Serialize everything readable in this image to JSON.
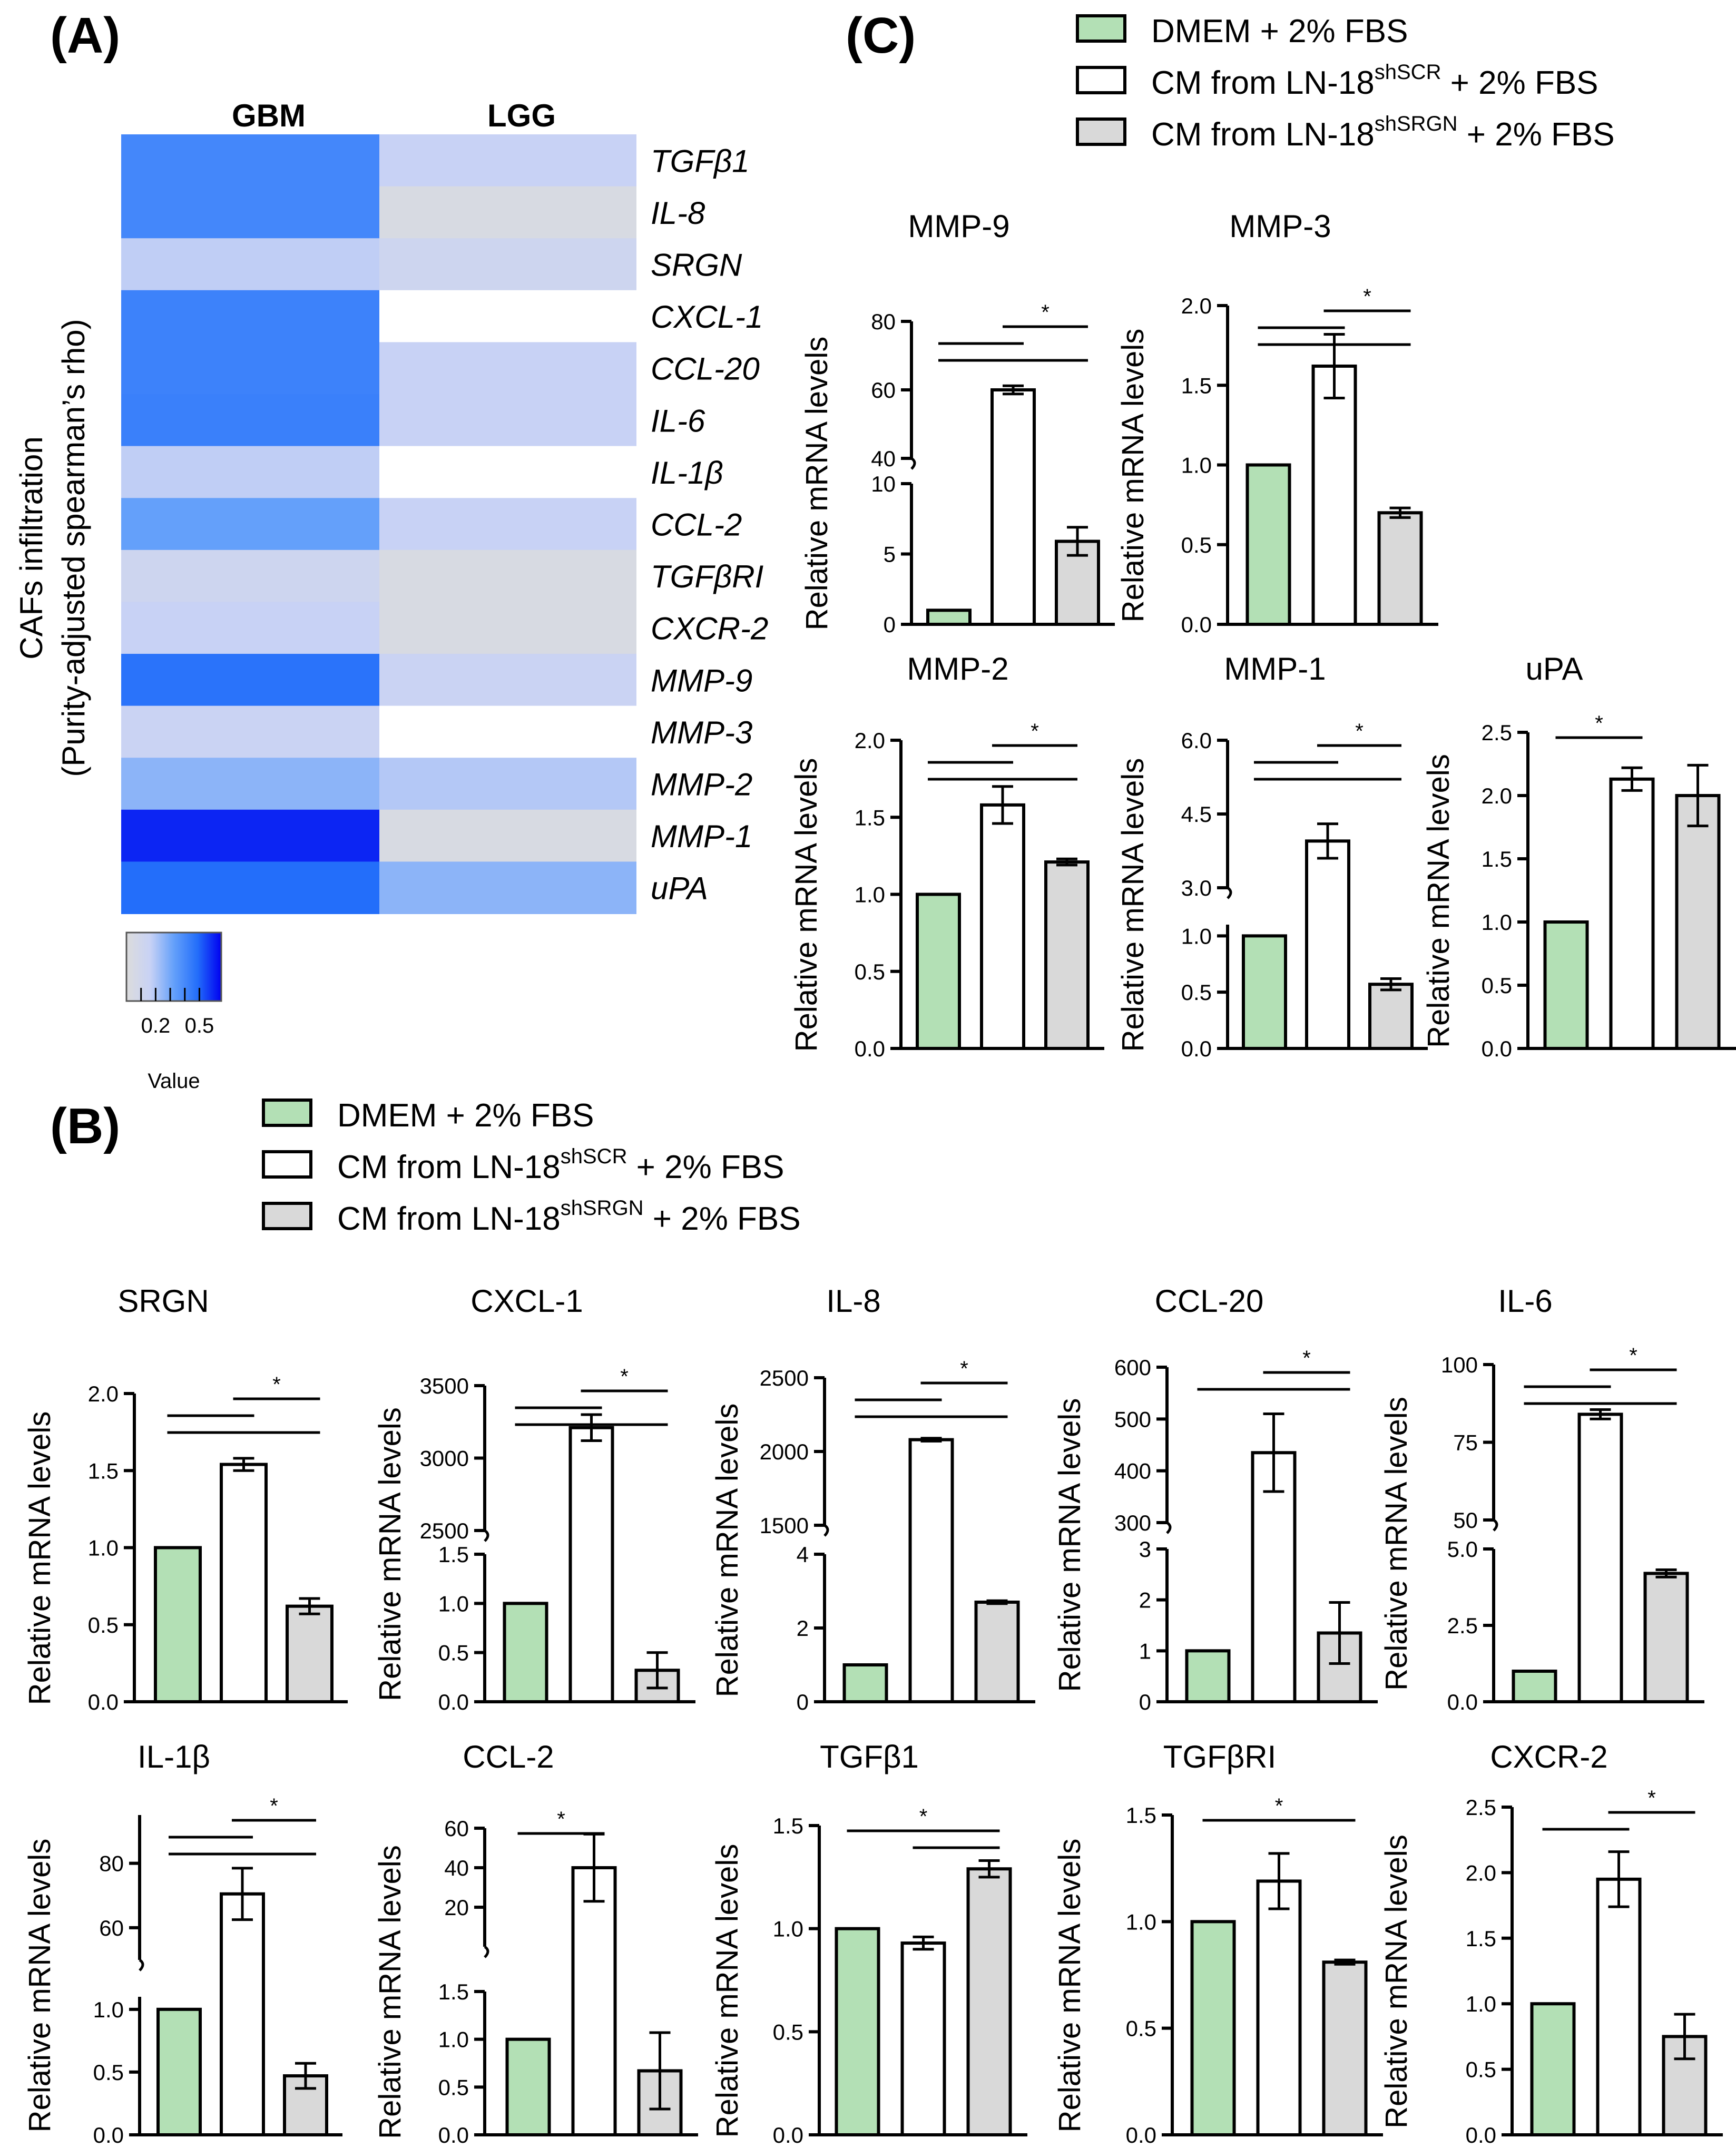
{
  "panels": {
    "A": "(A)",
    "B": "(B)",
    "C": "(C)"
  },
  "colors": {
    "dmem": "#b3e0b5",
    "shscr": "#ffffff",
    "shsrgn": "#d9d9d9",
    "stroke": "#000000"
  },
  "heatmap": {
    "columns": [
      "GBM",
      "LGG"
    ],
    "ylabel_line1": "CAFs infiltration",
    "ylabel_line2": "(Purity-adjusted spearman’s rho)",
    "rows": [
      {
        "gene": "TGFβ1",
        "gbm": 0.55,
        "lgg": 0.2
      },
      {
        "gene": "IL-8",
        "gbm": 0.55,
        "lgg": 0.05
      },
      {
        "gene": "SRGN",
        "gbm": 0.22,
        "lgg": 0.15
      },
      {
        "gene": "CXCL-1",
        "gbm": 0.57,
        "lgg": null
      },
      {
        "gene": "CCL-20",
        "gbm": 0.57,
        "lgg": 0.2
      },
      {
        "gene": "IL-6",
        "gbm": 0.58,
        "lgg": 0.2
      },
      {
        "gene": "IL-1β",
        "gbm": 0.22,
        "lgg": null
      },
      {
        "gene": "CCL-2",
        "gbm": 0.45,
        "lgg": 0.2
      },
      {
        "gene": "TGFβRI",
        "gbm": 0.15,
        "lgg": 0.05
      },
      {
        "gene": "CXCR-2",
        "gbm": 0.2,
        "lgg": 0.05
      },
      {
        "gene": "MMP-9",
        "gbm": 0.63,
        "lgg": 0.18
      },
      {
        "gene": "MMP-3",
        "gbm": 0.18,
        "lgg": null
      },
      {
        "gene": "MMP-2",
        "gbm": 0.35,
        "lgg": 0.25
      },
      {
        "gene": "MMP-1",
        "gbm": 0.75,
        "lgg": 0.05
      },
      {
        "gene": "uPA",
        "gbm": 0.65,
        "lgg": 0.35
      }
    ],
    "legend": {
      "title": "Value",
      "ticks": [
        "0.2",
        "0.5"
      ],
      "tick_values": [
        0.2,
        0.5
      ],
      "range": [
        0.0,
        0.65
      ]
    }
  },
  "legend": {
    "dmem": "DMEM + 2% FBS",
    "shscr_pre": "CM from LN-18",
    "shscr_sup": "shSCR",
    "shscr_post": " + 2% FBS",
    "shsrgn_pre": "CM from LN-18",
    "shsrgn_sup": "shSRGN",
    "shsrgn_post": " + 2% FBS"
  },
  "ylabel": "Relative mRNA levels",
  "chart_data": [
    {
      "id": "mmp9",
      "type": "bar",
      "title": "MMP-9",
      "categories": [
        "DMEM + 2% FBS",
        "CM from LN-18 shSCR + 2% FBS",
        "CM from LN-18 shSRGN + 2% FBS"
      ],
      "values": [
        1.0,
        60.0,
        5.9
      ],
      "errors": [
        0,
        1.2,
        1.0
      ],
      "upper": {
        "range": [
          40,
          80
        ],
        "ticks": [
          40,
          60,
          80
        ]
      },
      "lower": {
        "range": [
          0,
          10
        ],
        "ticks": [
          0,
          5,
          10
        ]
      },
      "significance": [
        [
          1,
          2
        ],
        [
          0,
          1
        ],
        [
          0,
          2
        ]
      ],
      "star": "*"
    },
    {
      "id": "mmp3",
      "type": "bar",
      "title": "MMP-3",
      "categories": [
        "DMEM + 2% FBS",
        "CM from LN-18 shSCR + 2% FBS",
        "CM from LN-18 shSRGN + 2% FBS"
      ],
      "values": [
        1.0,
        1.62,
        0.7
      ],
      "errors": [
        0,
        0.2,
        0.03
      ],
      "range": [
        0,
        2.0
      ],
      "ticks": [
        0.0,
        0.5,
        1.0,
        1.5,
        2.0
      ],
      "ticklabels": [
        "0.0",
        "0.5",
        "1.0",
        "1.5",
        "2.0"
      ],
      "significance": [
        [
          1,
          2
        ],
        [
          0,
          1
        ],
        [
          0,
          2
        ]
      ],
      "star": "*"
    },
    {
      "id": "mmp2",
      "type": "bar",
      "title": "MMP-2",
      "categories": [
        "DMEM + 2% FBS",
        "CM from LN-18 shSCR + 2% FBS",
        "CM from LN-18 shSRGN + 2% FBS"
      ],
      "values": [
        1.0,
        1.58,
        1.21
      ],
      "errors": [
        0,
        0.12,
        0.02
      ],
      "range": [
        0,
        2.0
      ],
      "ticks": [
        0.0,
        0.5,
        1.0,
        1.5,
        2.0
      ],
      "ticklabels": [
        "0.0",
        "0.5",
        "1.0",
        "1.5",
        "2.0"
      ],
      "significance": [
        [
          1,
          2
        ],
        [
          0,
          1
        ],
        [
          0,
          2
        ]
      ],
      "star": "*"
    },
    {
      "id": "mmp1",
      "type": "bar",
      "title": "MMP-1",
      "categories": [
        "DMEM + 2% FBS",
        "CM from LN-18 shSCR + 2% FBS",
        "CM from LN-18 shSRGN + 2% FBS"
      ],
      "values": [
        1.0,
        3.95,
        0.57
      ],
      "errors": [
        0,
        0.35,
        0.05
      ],
      "upper": {
        "range": [
          3.0,
          6.0
        ],
        "ticks": [
          3.0,
          4.5,
          6.0
        ],
        "ticklabels": [
          "3.0",
          "4.5",
          "6.0"
        ]
      },
      "lower": {
        "range": [
          0,
          1.1
        ],
        "ticks": [
          0.0,
          0.5,
          1.0
        ],
        "ticklabels": [
          "0.0",
          "0.5",
          "1.0"
        ]
      },
      "significance": [
        [
          1,
          2
        ],
        [
          0,
          1
        ],
        [
          0,
          2
        ]
      ],
      "star": "*"
    },
    {
      "id": "upa",
      "type": "bar",
      "title": "uPA",
      "categories": [
        "DMEM + 2% FBS",
        "CM from LN-18 shSCR + 2% FBS",
        "CM from LN-18 shSRGN + 2% FBS"
      ],
      "values": [
        1.0,
        2.13,
        2.0
      ],
      "errors": [
        0,
        0.09,
        0.24
      ],
      "range": [
        0,
        2.5
      ],
      "ticks": [
        0.0,
        0.5,
        1.0,
        1.5,
        2.0,
        2.5
      ],
      "ticklabels": [
        "0.0",
        "0.5",
        "1.0",
        "1.5",
        "2.0",
        "2.5"
      ],
      "significance": [
        [
          0,
          1
        ]
      ],
      "star": "*"
    },
    {
      "id": "srgn",
      "type": "bar",
      "title": "SRGN",
      "categories": [
        "DMEM + 2% FBS",
        "CM from LN-18 shSCR + 2% FBS",
        "CM from LN-18 shSRGN + 2% FBS"
      ],
      "values": [
        1.0,
        1.54,
        0.62
      ],
      "errors": [
        0,
        0.04,
        0.05
      ],
      "range": [
        0,
        2.0
      ],
      "ticks": [
        0.0,
        0.5,
        1.0,
        1.5,
        2.0
      ],
      "ticklabels": [
        "0.0",
        "0.5",
        "1.0",
        "1.5",
        "2.0"
      ],
      "significance": [
        [
          1,
          2
        ],
        [
          0,
          1
        ],
        [
          0,
          2
        ]
      ],
      "star": "*"
    },
    {
      "id": "cxcl1",
      "type": "bar",
      "title": "CXCL-1",
      "categories": [
        "DMEM + 2% FBS",
        "CM from LN-18 shSCR + 2% FBS",
        "CM from LN-18 shSRGN + 2% FBS"
      ],
      "values": [
        1.0,
        3210,
        0.32
      ],
      "errors": [
        0,
        90,
        0.18
      ],
      "upper": {
        "range": [
          2500,
          3500
        ],
        "ticks": [
          2500,
          3000,
          3500
        ]
      },
      "lower": {
        "range": [
          0,
          1.5
        ],
        "ticks": [
          0.0,
          0.5,
          1.0,
          1.5
        ],
        "ticklabels": [
          "0.0",
          "0.5",
          "1.0",
          "1.5"
        ]
      },
      "significance": [
        [
          1,
          2
        ],
        [
          0,
          1
        ],
        [
          0,
          2
        ]
      ],
      "star": "*"
    },
    {
      "id": "il8",
      "type": "bar",
      "title": "IL-8",
      "categories": [
        "DMEM + 2% FBS",
        "CM from LN-18 shSCR + 2% FBS",
        "CM from LN-18 shSRGN + 2% FBS"
      ],
      "values": [
        1.0,
        2080,
        2.7
      ],
      "errors": [
        0,
        10,
        0.04
      ],
      "upper": {
        "range": [
          1500,
          2500
        ],
        "ticks": [
          1500,
          2000,
          2500
        ]
      },
      "lower": {
        "range": [
          0,
          4
        ],
        "ticks": [
          0,
          2,
          4
        ]
      },
      "significance": [
        [
          1,
          2
        ],
        [
          0,
          1
        ],
        [
          0,
          2
        ]
      ],
      "star": "*"
    },
    {
      "id": "ccl20",
      "type": "bar",
      "title": "CCL-20",
      "categories": [
        "DMEM + 2% FBS",
        "CM from LN-18 shSCR + 2% FBS",
        "CM from LN-18 shSRGN + 2% FBS"
      ],
      "values": [
        1.0,
        435,
        1.35
      ],
      "errors": [
        0,
        75,
        0.6
      ],
      "upper": {
        "range": [
          300,
          600
        ],
        "ticks": [
          300,
          400,
          500,
          600
        ]
      },
      "lower": {
        "range": [
          0,
          3
        ],
        "ticks": [
          0,
          1,
          2,
          3
        ]
      },
      "significance": [
        [
          1,
          2
        ],
        [
          0,
          2
        ]
      ],
      "star": "*"
    },
    {
      "id": "il6",
      "type": "bar",
      "title": "IL-6",
      "categories": [
        "DMEM + 2% FBS",
        "CM from LN-18 shSCR + 2% FBS",
        "CM from LN-18 shSRGN + 2% FBS"
      ],
      "values": [
        1.0,
        84,
        4.2
      ],
      "errors": [
        0,
        1.5,
        0.12
      ],
      "upper": {
        "range": [
          50,
          100
        ],
        "ticks": [
          50,
          75,
          100
        ]
      },
      "lower": {
        "range": [
          0,
          5.0
        ],
        "ticks": [
          0.0,
          2.5,
          5.0
        ],
        "ticklabels": [
          "0.0",
          "2.5",
          "5.0"
        ]
      },
      "significance": [
        [
          1,
          2
        ],
        [
          0,
          1
        ],
        [
          0,
          2
        ]
      ],
      "star": "*"
    },
    {
      "id": "il1b",
      "type": "bar",
      "title": "IL-1β",
      "categories": [
        "DMEM + 2% FBS",
        "CM from LN-18 shSCR + 2% FBS",
        "CM from LN-18 shSRGN + 2% FBS"
      ],
      "values": [
        1.0,
        70.5,
        0.47
      ],
      "errors": [
        0,
        8,
        0.1
      ],
      "upper": {
        "range": [
          50,
          95
        ],
        "ticks": [
          60,
          80
        ]
      },
      "lower": {
        "range": [
          0,
          1.1
        ],
        "ticks": [
          0.0,
          0.5,
          1.0
        ],
        "ticklabels": [
          "0.0",
          "0.5",
          "1.0"
        ]
      },
      "significance": [
        [
          1,
          2
        ],
        [
          0,
          1
        ],
        [
          0,
          2
        ]
      ],
      "star": "*"
    },
    {
      "id": "ccl2",
      "type": "bar",
      "title": "CCL-2",
      "categories": [
        "DMEM + 2% FBS",
        "CM from LN-18 shSCR + 2% FBS",
        "CM from LN-18 shSRGN + 2% FBS"
      ],
      "values": [
        1.0,
        40,
        0.67
      ],
      "errors": [
        0,
        17,
        0.4
      ],
      "upper": {
        "range": [
          0,
          60
        ],
        "ticks": [
          20,
          40,
          60
        ]
      },
      "lower": {
        "range": [
          0,
          1.5
        ],
        "ticks": [
          0.0,
          0.5,
          1.0,
          1.5
        ],
        "ticklabels": [
          "0.0",
          "0.5",
          "1.0",
          "1.5"
        ]
      },
      "significance": [
        [
          0,
          1
        ]
      ],
      "star": "*"
    },
    {
      "id": "tgfb1",
      "type": "bar",
      "title": "TGFβ1",
      "categories": [
        "DMEM + 2% FBS",
        "CM from LN-18 shSCR + 2% FBS",
        "CM from LN-18 shSRGN + 2% FBS"
      ],
      "values": [
        1.0,
        0.93,
        1.29
      ],
      "errors": [
        0,
        0.03,
        0.04
      ],
      "range": [
        0,
        1.5
      ],
      "ticks": [
        0.0,
        0.5,
        1.0,
        1.5
      ],
      "ticklabels": [
        "0.0",
        "0.5",
        "1.0",
        "1.5"
      ],
      "significance": [
        [
          0,
          2
        ],
        [
          1,
          2
        ]
      ],
      "star": "*"
    },
    {
      "id": "tgfbri",
      "type": "bar",
      "title": "TGFβRI",
      "categories": [
        "DMEM + 2% FBS",
        "CM from LN-18 shSCR + 2% FBS",
        "CM from LN-18 shSRGN + 2% FBS"
      ],
      "values": [
        1.0,
        1.19,
        0.81
      ],
      "errors": [
        0,
        0.13,
        0.01
      ],
      "range": [
        0,
        1.5
      ],
      "ticks": [
        0.0,
        0.5,
        1.0,
        1.5
      ],
      "ticklabels": [
        "0.0",
        "0.5",
        "1.0",
        "1.5"
      ],
      "significance": [
        [
          0,
          2
        ]
      ],
      "star": "*"
    },
    {
      "id": "cxcr2",
      "type": "bar",
      "title": "CXCR-2",
      "categories": [
        "DMEM + 2% FBS",
        "CM from LN-18 shSCR + 2% FBS",
        "CM from LN-18 shSRGN + 2% FBS"
      ],
      "values": [
        1.0,
        1.95,
        0.75
      ],
      "errors": [
        0,
        0.21,
        0.17
      ],
      "range": [
        0,
        2.5
      ],
      "ticks": [
        0.0,
        0.5,
        1.0,
        1.5,
        2.0,
        2.5
      ],
      "ticklabels": [
        "0.0",
        "0.5",
        "1.0",
        "1.5",
        "2.0",
        "2.5"
      ],
      "significance": [
        [
          1,
          2
        ],
        [
          0,
          1
        ]
      ],
      "star": "*"
    }
  ]
}
